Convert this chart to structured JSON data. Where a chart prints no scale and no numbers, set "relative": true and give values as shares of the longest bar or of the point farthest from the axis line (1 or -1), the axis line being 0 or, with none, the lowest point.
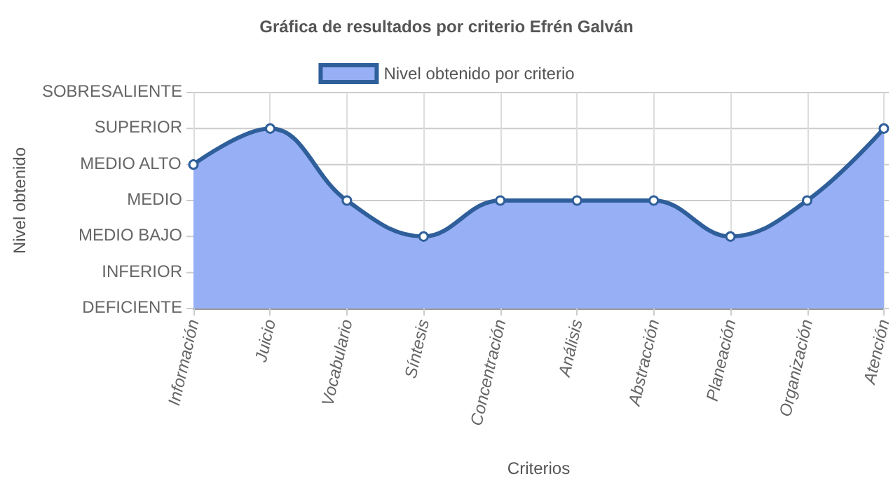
{
  "chart_data": {
    "type": "area",
    "title": "Gráfica de resultados por criterio Efrén Galván",
    "xlabel": "Criterios",
    "categories": [
      "Información",
      "Juicio",
      "Vocabulario",
      "Síntesis",
      "Concentración",
      "Análisis",
      "Abstracción",
      "Planeación",
      "Organización",
      "Atención"
    ],
    "relative": true,
    "series": [
      {
        "name": "Nivel obtenido por criterio",
        "color": "#2f5f9a",
        "values": [
          0.8,
          1,
          0.6,
          0.4,
          0.6,
          0.6,
          0.6,
          0.4,
          0.6,
          1
        ]
      }
    ],
    "annotations": [
      "Nivel obtenido",
      "DEFICIENTE",
      "INFERIOR",
      "MEDIO BAJO",
      "MEDIO",
      "MEDIO ALTO",
      "SUPERIOR",
      "SOBRESALIENTE"
    ],
    "grid": true,
    "legend": "top",
    "marker": "circle",
    "line_style": "solid"
  }
}
